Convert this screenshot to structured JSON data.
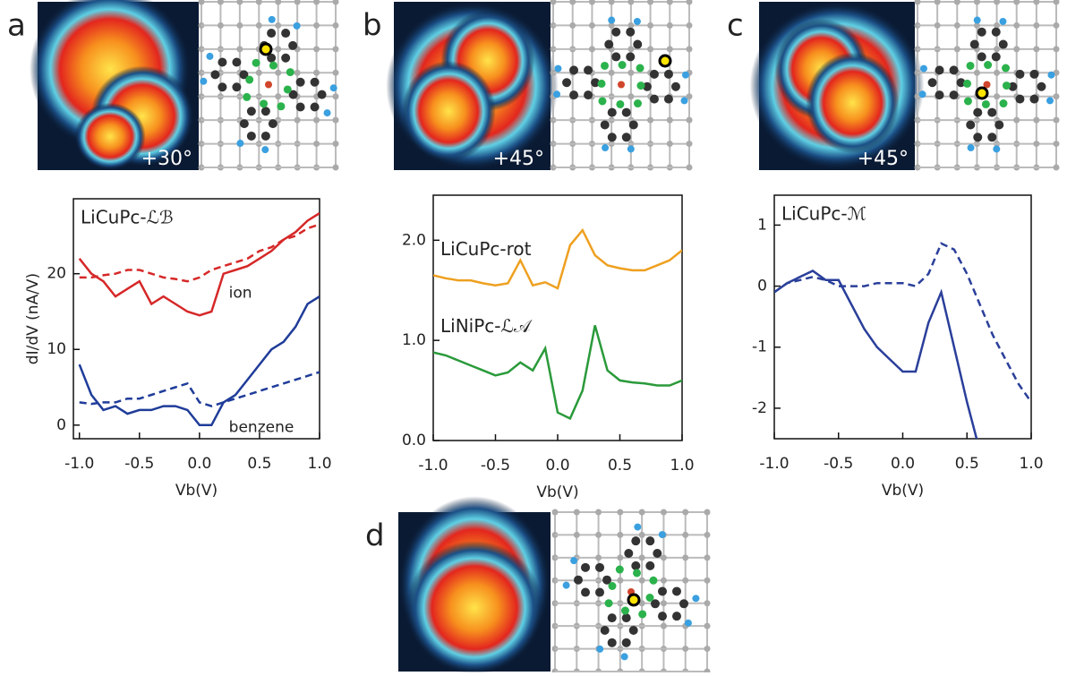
{
  "panels": [
    {
      "letter": "a",
      "angle": "+30°"
    },
    {
      "letter": "b",
      "angle": "+45°"
    },
    {
      "letter": "c",
      "angle": "+45°"
    },
    {
      "letter": "d"
    }
  ],
  "chart_data": [
    {
      "type": "line",
      "title": "LiCuPc-ℒℬ",
      "xlabel": "Vb(V)",
      "ylabel": "dI/dV (nA/V)",
      "annotations": [
        "ion",
        "benzene"
      ],
      "x": [
        -1,
        -0.9,
        -0.8,
        -0.7,
        -0.6,
        -0.5,
        -0.4,
        -0.3,
        -0.2,
        -0.1,
        0,
        0.1,
        0.2,
        0.3,
        0.4,
        0.5,
        0.6,
        0.7,
        0.8,
        0.9,
        1
      ],
      "xlim": [
        -1.05,
        1.0
      ],
      "ylim": [
        -1.8,
        29.9
      ],
      "xticks": [
        {
          "value": -1,
          "label": "-1.0"
        },
        -0.5,
        {
          "value": 0,
          "label": "0.0"
        },
        0.5,
        {
          "value": 1,
          "label": "1.0"
        }
      ],
      "yticks": [
        0,
        10,
        20
      ],
      "series": [
        {
          "color": "#d62828",
          "dash": false,
          "values": [
            22,
            20,
            19,
            17,
            18,
            19,
            16,
            17,
            16,
            15,
            14.5,
            15,
            20,
            20.5,
            21,
            22,
            23,
            24.5,
            25.5,
            27,
            28
          ]
        },
        {
          "color": "#d62828",
          "dash": true,
          "values": [
            19.5,
            19.5,
            19.8,
            20,
            20.5,
            20.5,
            20,
            19.5,
            19.3,
            19,
            19.5,
            20.5,
            21,
            21.5,
            22,
            23,
            23.5,
            24.5,
            25,
            26,
            26.5
          ]
        },
        {
          "color": "#1f3c99",
          "dash": false,
          "values": [
            8,
            4,
            2,
            2.5,
            1.5,
            2,
            2,
            2.5,
            2.5,
            2,
            0,
            0,
            3,
            4,
            6,
            8,
            10,
            11,
            13,
            16,
            17
          ]
        },
        {
          "color": "#1f3c99",
          "dash": true,
          "values": [
            3,
            2.8,
            3,
            3,
            3.5,
            3.5,
            4,
            4.5,
            5,
            5.5,
            3,
            2.5,
            3,
            3.5,
            4,
            4.5,
            5,
            5.5,
            6,
            6.5,
            7
          ]
        }
      ]
    },
    {
      "type": "line",
      "xlabel": "Vb(V)",
      "x": [
        -1,
        -0.9,
        -0.8,
        -0.7,
        -0.6,
        -0.5,
        -0.4,
        -0.3,
        -0.2,
        -0.1,
        0,
        0.1,
        0.2,
        0.3,
        0.4,
        0.5,
        0.6,
        0.7,
        0.8,
        0.9,
        1
      ],
      "xlim": [
        -1.0,
        1.0
      ],
      "ylim": [
        0,
        2.45
      ],
      "xticks": [
        {
          "value": -1,
          "label": "-1.0"
        },
        -0.5,
        {
          "value": 0,
          "label": "0.0"
        },
        0.5,
        {
          "value": 1,
          "label": "1.0"
        }
      ],
      "yticks": [
        {
          "value": 0,
          "label": "0.0"
        },
        {
          "value": 1,
          "label": "1.0"
        },
        {
          "value": 2,
          "label": "2.0"
        }
      ],
      "series": [
        {
          "name": "LiCuPc-rot",
          "color": "#eea020",
          "dash": false,
          "values": [
            1.65,
            1.62,
            1.6,
            1.6,
            1.57,
            1.55,
            1.57,
            1.8,
            1.55,
            1.58,
            1.52,
            1.95,
            2.1,
            1.85,
            1.75,
            1.72,
            1.7,
            1.7,
            1.75,
            1.8,
            1.9
          ]
        },
        {
          "name": "LiNiPc-ℒ𝒜",
          "color": "#2a9a3a",
          "dash": false,
          "values": [
            0.88,
            0.85,
            0.8,
            0.75,
            0.7,
            0.65,
            0.68,
            0.78,
            0.7,
            0.92,
            0.28,
            0.22,
            0.5,
            1.15,
            0.7,
            0.6,
            0.58,
            0.57,
            0.55,
            0.55,
            0.6
          ]
        }
      ]
    },
    {
      "type": "line",
      "title": "LiCuPc-ℳ",
      "xlabel": "Vb(V)",
      "x": [
        -1,
        -0.9,
        -0.8,
        -0.7,
        -0.6,
        -0.5,
        -0.4,
        -0.3,
        -0.2,
        -0.1,
        0,
        0.1,
        0.2,
        0.3,
        0.4,
        0.5,
        0.6,
        0.7,
        0.8,
        0.9,
        1
      ],
      "xlim": [
        -1.0,
        1.0
      ],
      "ylim": [
        -2.5,
        1.49
      ],
      "xticks": [
        {
          "value": -1,
          "label": "-1.0"
        },
        -0.5,
        {
          "value": 0,
          "label": "0.0"
        },
        0.5,
        {
          "value": 1,
          "label": "1.0"
        }
      ],
      "yticks": [
        1,
        0,
        -1,
        -2
      ],
      "series": [
        {
          "color": "#2a3f9a",
          "dash": false,
          "values": [
            -0.1,
            0.05,
            0.15,
            0.25,
            0.1,
            0.1,
            -0.3,
            -0.7,
            -1.0,
            -1.2,
            -1.4,
            -1.4,
            -0.6,
            -0.1,
            -1.0,
            -1.9,
            -2.7,
            null,
            null,
            null,
            null
          ]
        },
        {
          "color": "#2a3f9a",
          "dash": true,
          "values": [
            -0.1,
            0.05,
            0.1,
            0.15,
            0.1,
            0,
            0,
            0,
            0.05,
            0.05,
            0.05,
            0,
            0.2,
            0.7,
            0.6,
            0.2,
            -0.3,
            -0.8,
            -1.2,
            -1.6,
            -1.9
          ]
        }
      ]
    }
  ]
}
